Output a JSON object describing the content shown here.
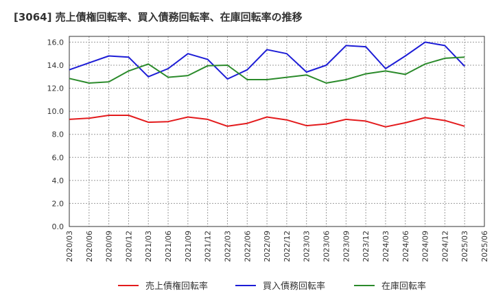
{
  "chart_data": {
    "type": "line",
    "title": "[3064]  売上債権回転率、買入債務回転率、在庫回転率の推移",
    "xlabel": "",
    "ylabel": "",
    "ylim": [
      0,
      16.5
    ],
    "yticks": [
      0.0,
      2.0,
      4.0,
      6.0,
      8.0,
      10.0,
      12.0,
      14.0,
      16.0
    ],
    "ytick_labels": [
      "0.0",
      "2.0",
      "4.0",
      "6.0",
      "8.0",
      "10.0",
      "12.0",
      "14.0",
      "16.0"
    ],
    "categories": [
      "2020/03",
      "2020/06",
      "2020/09",
      "2020/12",
      "2021/03",
      "2021/06",
      "2021/09",
      "2021/12",
      "2022/03",
      "2022/06",
      "2022/09",
      "2022/12",
      "2023/03",
      "2023/06",
      "2023/09",
      "2023/12",
      "2024/03",
      "2024/06",
      "2024/09",
      "2024/12",
      "2025/03",
      "2025/06"
    ],
    "grid": true,
    "legend_position": "bottom",
    "series": [
      {
        "name": "売上債権回転率",
        "color": "#e31a1c",
        "values": [
          9.3,
          9.4,
          9.65,
          9.65,
          9.05,
          9.1,
          9.5,
          9.3,
          8.7,
          8.95,
          9.5,
          9.25,
          8.75,
          8.9,
          9.3,
          9.15,
          8.65,
          9.0,
          9.45,
          9.2,
          8.7,
          null
        ]
      },
      {
        "name": "買入債務回転率",
        "color": "#1c1cd6",
        "values": [
          13.6,
          14.2,
          14.8,
          14.7,
          13.0,
          13.7,
          15.0,
          14.5,
          12.8,
          13.6,
          15.35,
          15.0,
          13.4,
          14.0,
          15.7,
          15.6,
          13.7,
          14.8,
          16.0,
          15.7,
          13.9,
          null
        ]
      },
      {
        "name": "在庫回転率",
        "color": "#2a8a2a",
        "values": [
          12.85,
          12.45,
          12.55,
          13.5,
          14.1,
          12.95,
          13.1,
          13.95,
          14.0,
          12.75,
          12.75,
          12.95,
          13.15,
          12.45,
          12.75,
          13.25,
          13.5,
          13.2,
          14.1,
          14.6,
          14.7,
          null
        ]
      }
    ]
  }
}
